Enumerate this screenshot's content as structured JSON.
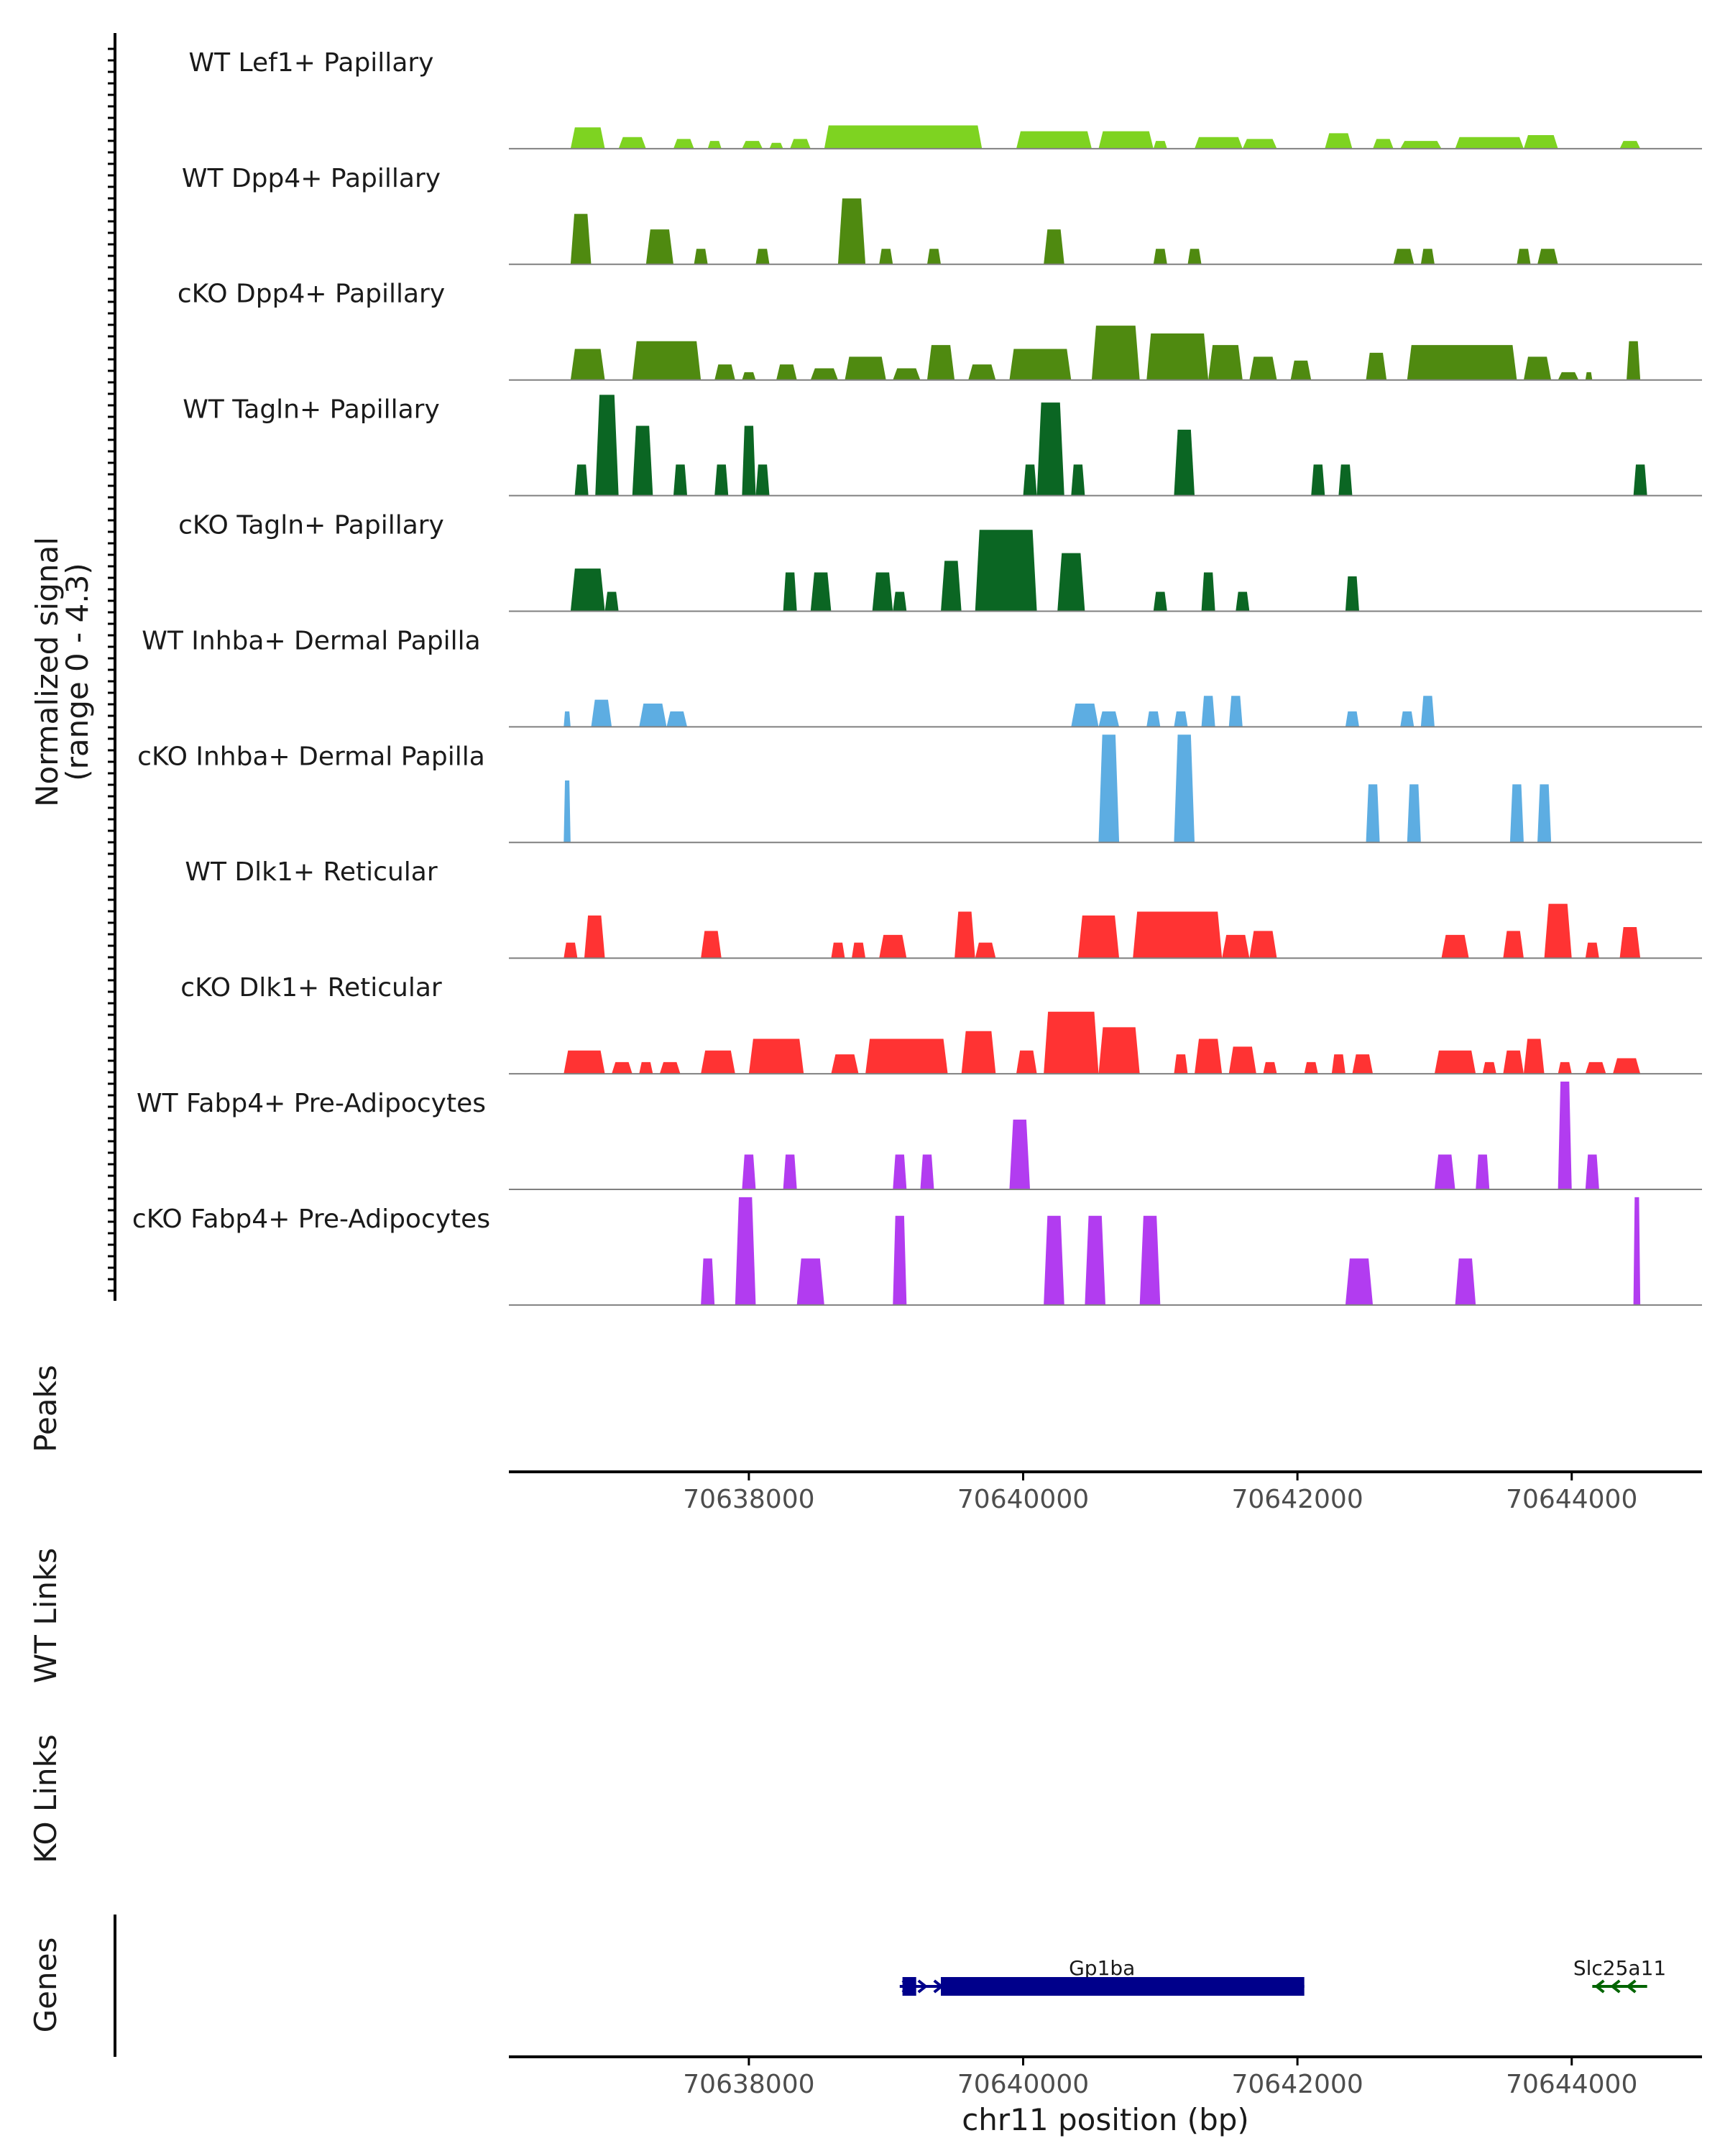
{
  "chart_data": {
    "type": "area",
    "region": "chr11",
    "x_range": [
      70636250,
      70644950
    ],
    "y_axis_title": "Normalized signal",
    "y_axis_subtitle": "(range 0 - 4.3)",
    "y_range": [
      0,
      4.3
    ],
    "x_axis_title": "chr11 position (bp)",
    "x_ticks": [
      70638000,
      70640000,
      70642000,
      70644000
    ],
    "x_tick_labels": [
      "70638000",
      "70640000",
      "70642000",
      "70644000"
    ],
    "tracks": [
      {
        "name": "WT Lef1+ Papillary",
        "color": "#7ED321",
        "peaks": [
          [
            70636700,
            70636950,
            0.55
          ],
          [
            70637050,
            70637250,
            0.3
          ],
          [
            70637450,
            70637600,
            0.25
          ],
          [
            70637700,
            70637800,
            0.2
          ],
          [
            70637950,
            70638100,
            0.2
          ],
          [
            70638150,
            70638250,
            0.15
          ],
          [
            70638300,
            70638450,
            0.25
          ],
          [
            70638550,
            70639700,
            0.6
          ],
          [
            70639950,
            70640500,
            0.45
          ],
          [
            70640550,
            70640950,
            0.45
          ],
          [
            70640950,
            70641050,
            0.2
          ],
          [
            70641250,
            70641600,
            0.3
          ],
          [
            70641600,
            70641850,
            0.25
          ],
          [
            70642200,
            70642400,
            0.4
          ],
          [
            70642550,
            70642700,
            0.25
          ],
          [
            70642750,
            70643050,
            0.2
          ],
          [
            70643150,
            70643650,
            0.3
          ],
          [
            70643650,
            70643900,
            0.35
          ],
          [
            70644350,
            70644500,
            0.2
          ]
        ]
      },
      {
        "name": "WT Dpp4+ Papillary",
        "color": "#4F8A10",
        "peaks": [
          [
            70636700,
            70636850,
            1.3
          ],
          [
            70637250,
            70637450,
            0.9
          ],
          [
            70637600,
            70637700,
            0.4
          ],
          [
            70638050,
            70638150,
            0.4
          ],
          [
            70638650,
            70638850,
            1.7
          ],
          [
            70638950,
            70639050,
            0.4
          ],
          [
            70639300,
            70639400,
            0.4
          ],
          [
            70640150,
            70640300,
            0.9
          ],
          [
            70640950,
            70641050,
            0.4
          ],
          [
            70641200,
            70641300,
            0.4
          ],
          [
            70642700,
            70642850,
            0.4
          ],
          [
            70642900,
            70643000,
            0.4
          ],
          [
            70643600,
            70643700,
            0.4
          ],
          [
            70643750,
            70643900,
            0.4
          ]
        ]
      },
      {
        "name": "cKO Dpp4+ Papillary",
        "color": "#4F8A10",
        "peaks": [
          [
            70636700,
            70636950,
            0.8
          ],
          [
            70637150,
            70637650,
            1.0
          ],
          [
            70637750,
            70637900,
            0.4
          ],
          [
            70637950,
            70638050,
            0.2
          ],
          [
            70638200,
            70638350,
            0.4
          ],
          [
            70638450,
            70638650,
            0.3
          ],
          [
            70638700,
            70639000,
            0.6
          ],
          [
            70639050,
            70639250,
            0.3
          ],
          [
            70639300,
            70639500,
            0.9
          ],
          [
            70639600,
            70639800,
            0.4
          ],
          [
            70639900,
            70640350,
            0.8
          ],
          [
            70640500,
            70640850,
            1.4
          ],
          [
            70640900,
            70641350,
            1.2
          ],
          [
            70641350,
            70641600,
            0.9
          ],
          [
            70641650,
            70641850,
            0.6
          ],
          [
            70641950,
            70642100,
            0.5
          ],
          [
            70642500,
            70642650,
            0.7
          ],
          [
            70642800,
            70643600,
            0.9
          ],
          [
            70643650,
            70643850,
            0.6
          ],
          [
            70643900,
            70644050,
            0.2
          ],
          [
            70644100,
            70644150,
            0.2
          ],
          [
            70644400,
            70644500,
            1.0
          ]
        ]
      },
      {
        "name": "WT Tagln+ Papillary",
        "color": "#0B6623",
        "peaks": [
          [
            70636730,
            70636830,
            0.8
          ],
          [
            70636880,
            70637050,
            2.6
          ],
          [
            70637150,
            70637300,
            1.8
          ],
          [
            70637450,
            70637550,
            0.8
          ],
          [
            70637750,
            70637850,
            0.8
          ],
          [
            70637950,
            70638050,
            1.8
          ],
          [
            70638050,
            70638150,
            0.8
          ],
          [
            70640000,
            70640100,
            0.8
          ],
          [
            70640100,
            70640300,
            2.4
          ],
          [
            70640350,
            70640450,
            0.8
          ],
          [
            70641100,
            70641250,
            1.7
          ],
          [
            70642100,
            70642200,
            0.8
          ],
          [
            70642300,
            70642400,
            0.8
          ],
          [
            70644450,
            70644550,
            0.8
          ]
        ]
      },
      {
        "name": "cKO Tagln+ Papillary",
        "color": "#0B6623",
        "peaks": [
          [
            70636700,
            70636950,
            1.1
          ],
          [
            70636950,
            70637050,
            0.5
          ],
          [
            70638250,
            70638350,
            1.0
          ],
          [
            70638450,
            70638600,
            1.0
          ],
          [
            70638900,
            70639050,
            1.0
          ],
          [
            70639050,
            70639150,
            0.5
          ],
          [
            70639400,
            70639550,
            1.3
          ],
          [
            70639650,
            70640100,
            2.1
          ],
          [
            70640250,
            70640450,
            1.5
          ],
          [
            70640950,
            70641050,
            0.5
          ],
          [
            70641300,
            70641400,
            1.0
          ],
          [
            70641550,
            70641650,
            0.5
          ],
          [
            70642350,
            70642450,
            0.9
          ]
        ]
      },
      {
        "name": "WT Inhba+ Dermal Papilla",
        "color": "#5DADE2",
        "peaks": [
          [
            70636650,
            70636700,
            0.4
          ],
          [
            70636850,
            70637000,
            0.7
          ],
          [
            70637200,
            70637400,
            0.6
          ],
          [
            70637400,
            70637550,
            0.4
          ],
          [
            70640350,
            70640550,
            0.6
          ],
          [
            70640550,
            70640700,
            0.4
          ],
          [
            70640900,
            70641000,
            0.4
          ],
          [
            70641100,
            70641200,
            0.4
          ],
          [
            70641300,
            70641400,
            0.8
          ],
          [
            70641500,
            70641600,
            0.8
          ],
          [
            70642350,
            70642450,
            0.4
          ],
          [
            70642750,
            70642850,
            0.4
          ],
          [
            70642900,
            70643000,
            0.8
          ]
        ]
      },
      {
        "name": "cKO Inhba+ Dermal Papilla",
        "color": "#5DADE2",
        "peaks": [
          [
            70636650,
            70636700,
            1.6
          ],
          [
            70640550,
            70640700,
            3.0
          ],
          [
            70641100,
            70641250,
            3.0
          ],
          [
            70642500,
            70642600,
            1.5
          ],
          [
            70642800,
            70642900,
            1.5
          ],
          [
            70643550,
            70643650,
            1.5
          ],
          [
            70643750,
            70643850,
            1.5
          ]
        ]
      },
      {
        "name": "WT Dlk1+ Reticular",
        "color": "#FF3333",
        "peaks": [
          [
            70636650,
            70636750,
            0.4
          ],
          [
            70636800,
            70636950,
            1.1
          ],
          [
            70637650,
            70637800,
            0.7
          ],
          [
            70638600,
            70638700,
            0.4
          ],
          [
            70638750,
            70638850,
            0.4
          ],
          [
            70638950,
            70639150,
            0.6
          ],
          [
            70639500,
            70639650,
            1.2
          ],
          [
            70639650,
            70639800,
            0.4
          ],
          [
            70640400,
            70640700,
            1.1
          ],
          [
            70640800,
            70641450,
            1.2
          ],
          [
            70641450,
            70641650,
            0.6
          ],
          [
            70641650,
            70641850,
            0.7
          ],
          [
            70643050,
            70643250,
            0.6
          ],
          [
            70643500,
            70643650,
            0.7
          ],
          [
            70643800,
            70644000,
            1.4
          ],
          [
            70644100,
            70644200,
            0.4
          ],
          [
            70644350,
            70644500,
            0.8
          ]
        ]
      },
      {
        "name": "cKO Dlk1+ Reticular",
        "color": "#FF3333",
        "peaks": [
          [
            70636650,
            70636950,
            0.6
          ],
          [
            70637000,
            70637150,
            0.3
          ],
          [
            70637200,
            70637300,
            0.3
          ],
          [
            70637350,
            70637500,
            0.3
          ],
          [
            70637650,
            70637900,
            0.6
          ],
          [
            70638000,
            70638400,
            0.9
          ],
          [
            70638600,
            70638800,
            0.5
          ],
          [
            70638850,
            70639450,
            0.9
          ],
          [
            70639550,
            70639800,
            1.1
          ],
          [
            70639950,
            70640100,
            0.6
          ],
          [
            70640150,
            70640550,
            1.6
          ],
          [
            70640550,
            70640850,
            1.2
          ],
          [
            70641100,
            70641200,
            0.5
          ],
          [
            70641250,
            70641450,
            0.9
          ],
          [
            70641500,
            70641700,
            0.7
          ],
          [
            70641750,
            70641850,
            0.3
          ],
          [
            70642050,
            70642150,
            0.3
          ],
          [
            70642250,
            70642350,
            0.5
          ],
          [
            70642400,
            70642550,
            0.5
          ],
          [
            70643000,
            70643300,
            0.6
          ],
          [
            70643350,
            70643450,
            0.3
          ],
          [
            70643500,
            70643650,
            0.6
          ],
          [
            70643650,
            70643800,
            0.9
          ],
          [
            70643900,
            70644000,
            0.3
          ],
          [
            70644100,
            70644250,
            0.3
          ],
          [
            70644300,
            70644500,
            0.4
          ]
        ]
      },
      {
        "name": "WT Fabp4+ Pre-Adipocytes",
        "color": "#B23CF0",
        "peaks": [
          [
            70637950,
            70638050,
            0.9
          ],
          [
            70638250,
            70638350,
            0.9
          ],
          [
            70639050,
            70639150,
            0.9
          ],
          [
            70639250,
            70639350,
            0.9
          ],
          [
            70639900,
            70640050,
            1.8
          ],
          [
            70643000,
            70643150,
            0.9
          ],
          [
            70643300,
            70643400,
            0.9
          ],
          [
            70643900,
            70644000,
            2.9
          ],
          [
            70644100,
            70644200,
            0.9
          ]
        ]
      },
      {
        "name": "cKO Fabp4+ Pre-Adipocytes",
        "color": "#B23CF0",
        "peaks": [
          [
            70637650,
            70637750,
            1.2
          ],
          [
            70637900,
            70638050,
            3.5
          ],
          [
            70638350,
            70638550,
            1.2
          ],
          [
            70639050,
            70639150,
            2.3
          ],
          [
            70640150,
            70640300,
            2.3
          ],
          [
            70640450,
            70640600,
            2.3
          ],
          [
            70640850,
            70641000,
            2.3
          ],
          [
            70642350,
            70642550,
            1.2
          ],
          [
            70643150,
            70643300,
            1.2
          ],
          [
            70644450,
            70644500,
            3.5
          ]
        ]
      }
    ],
    "peaks_track_label": "Peaks",
    "wt_links_label": "WT Links",
    "ko_links_label": "KO Links",
    "genes_track_label": "Genes",
    "genes": [
      {
        "name": "Gp1ba",
        "strand": "+",
        "start": 70639100,
        "end": 70642050,
        "exons": [
          [
            70639120,
            70639220
          ],
          [
            70639400,
            70642050
          ]
        ],
        "color": "#00008B"
      },
      {
        "name": "Slc25a11",
        "strand": "-",
        "start": 70644150,
        "end": 70644550,
        "exons": [],
        "color": "#006400"
      }
    ]
  }
}
